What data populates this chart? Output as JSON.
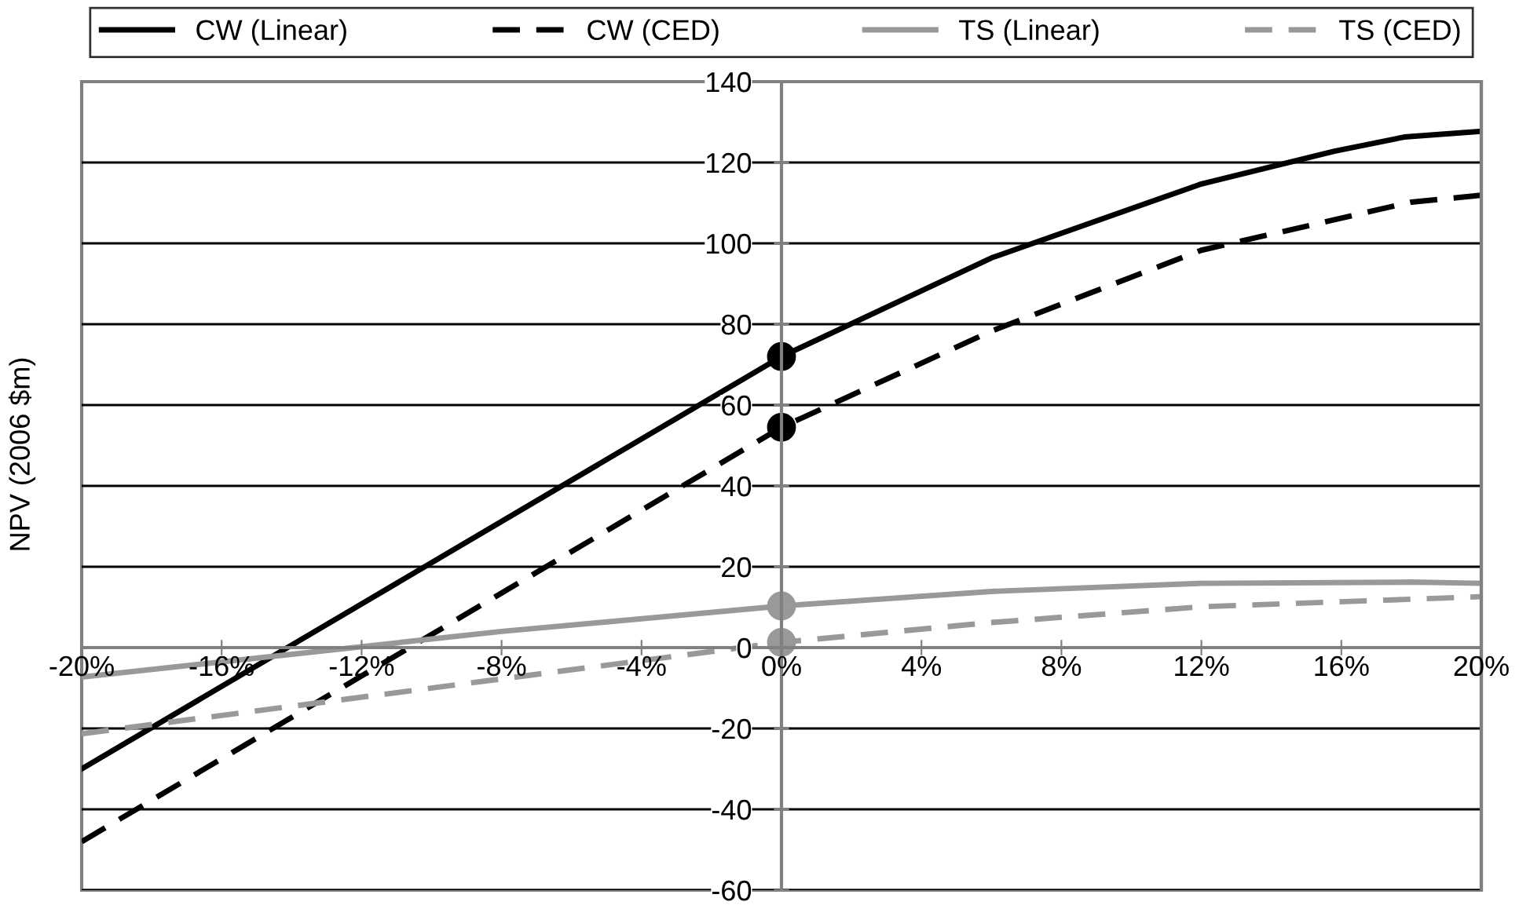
{
  "chart_data": {
    "type": "line",
    "ylabel": "NPV (2006 $m)",
    "xlim": [
      -20,
      20
    ],
    "ylim": [
      -60,
      140
    ],
    "xticks": [
      {
        "value": -20,
        "label": "-20%"
      },
      {
        "value": -16,
        "label": "-16%"
      },
      {
        "value": -12,
        "label": "-12%"
      },
      {
        "value": -8,
        "label": "-8%"
      },
      {
        "value": -4,
        "label": "-4%"
      },
      {
        "value": 0,
        "label": "0%"
      },
      {
        "value": 4,
        "label": "4%"
      },
      {
        "value": 8,
        "label": "8%"
      },
      {
        "value": 12,
        "label": "12%"
      },
      {
        "value": 16,
        "label": "16%"
      },
      {
        "value": 20,
        "label": "20%"
      }
    ],
    "yticks": [
      -60,
      -40,
      -20,
      0,
      20,
      40,
      60,
      80,
      100,
      120,
      140
    ],
    "grid": "y",
    "legend": "top",
    "marker": "none",
    "series": [
      {
        "name": "CW (Linear)",
        "color": "#000000",
        "line_style": "solid",
        "x": [
          -20,
          0,
          6,
          12,
          15.8,
          17.8,
          20
        ],
        "values": [
          -30,
          72,
          96.4,
          114.7,
          122.8,
          126.3,
          127.7
        ]
      },
      {
        "name": "CW (CED)",
        "color": "#000000",
        "line_style": "dashed",
        "x": [
          -20,
          0,
          6,
          12,
          18,
          20
        ],
        "values": [
          -48,
          54.5,
          78.3,
          98.3,
          110.2,
          111.9
        ]
      },
      {
        "name": "TS (Linear)",
        "color": "#999999",
        "line_style": "solid",
        "x": [
          -20,
          -8,
          0,
          6,
          12,
          18,
          20
        ],
        "values": [
          -7.3,
          4,
          10.3,
          13.9,
          15.9,
          16.2,
          15.9
        ]
      },
      {
        "name": "TS (CED)",
        "color": "#999999",
        "line_style": "dashed",
        "x": [
          -20,
          0,
          6,
          12,
          20
        ],
        "values": [
          -21.3,
          1.3,
          6.2,
          10.1,
          12.6
        ]
      },
      {
        "type": "scatter",
        "marker": "circle",
        "x": [
          0,
          0,
          0,
          0
        ],
        "values": [
          72,
          54.5,
          10.3,
          1.3
        ],
        "colors": [
          "#000000",
          "#000000",
          "#999999",
          "#999999"
        ]
      }
    ]
  }
}
